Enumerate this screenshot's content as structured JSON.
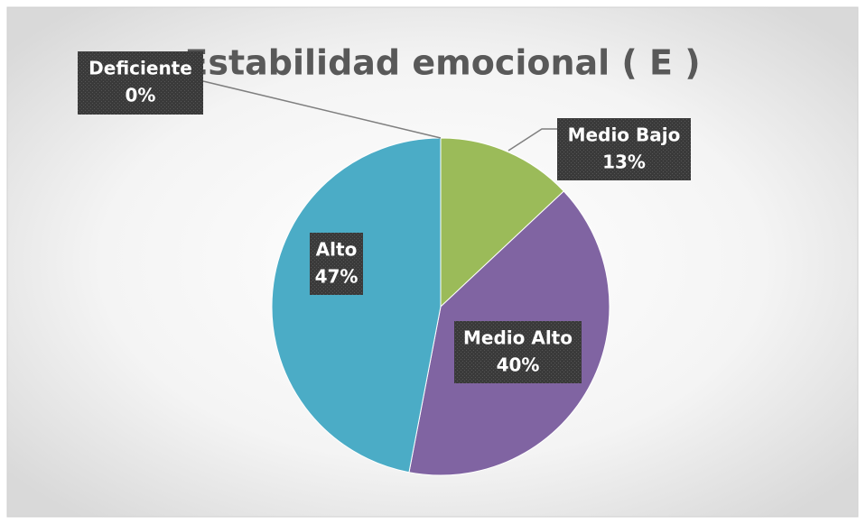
{
  "chart_data": {
    "type": "pie",
    "title": "Estabilidad emocional ( E )",
    "categories": [
      "Deficiente",
      "Medio Bajo",
      "Medio Alto",
      "Alto"
    ],
    "values": [
      0,
      13,
      40,
      47
    ],
    "value_labels": [
      "0%",
      "13%",
      "40%",
      "47%"
    ],
    "colors": [
      "#4f81bd",
      "#9bbb59",
      "#8064a2",
      "#4bacc6"
    ]
  }
}
